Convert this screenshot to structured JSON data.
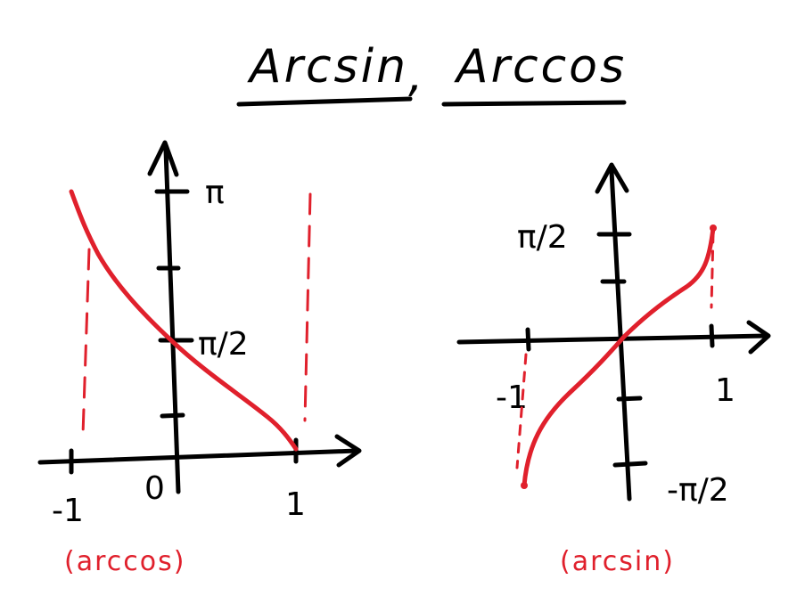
{
  "colors": {
    "ink": "#000000",
    "curve": "#e0202c",
    "background": "#ffffff"
  },
  "title": {
    "part1": "Arcsin",
    "separator": ",",
    "part2": "Arccos"
  },
  "left_graph": {
    "y_labels": {
      "pi": "π",
      "pi_half": "π/2"
    },
    "x_labels": {
      "minus_one": "-1",
      "zero": "0",
      "one": "1"
    },
    "caption": "(arccos)"
  },
  "right_graph": {
    "y_labels": {
      "pi_half": "π/2",
      "minus_pi_half": "-π/2"
    },
    "x_labels": {
      "minus_one": "-1",
      "one": "1"
    },
    "caption": "(arcsin)"
  }
}
